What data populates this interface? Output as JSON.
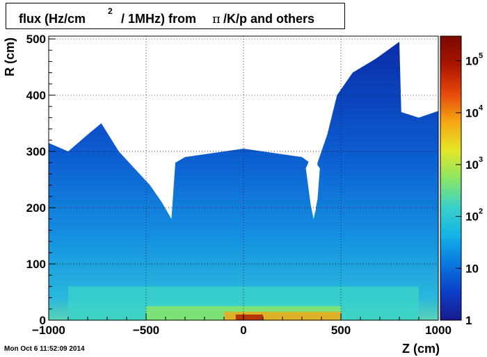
{
  "title": {
    "part1": "flux (Hz/cm",
    "sup": "2",
    "part2": " / 1MHz) from ",
    "pi": "π",
    "part3": "/K/p and others"
  },
  "timestamp": "Mon Oct  6 11:52:09 2014",
  "chart_data": {
    "type": "heatmap",
    "xlabel": "Z (cm)",
    "ylabel": "R (cm)",
    "xlim": [
      -1000,
      1000
    ],
    "ylim": [
      0,
      505
    ],
    "x_ticks": [
      "−1000",
      "−500",
      "0",
      "500",
      "1000"
    ],
    "x_tick_values": [
      -1000,
      -500,
      0,
      500,
      1000
    ],
    "y_ticks": [
      "0",
      "100",
      "200",
      "300",
      "400",
      "500"
    ],
    "y_tick_values": [
      0,
      100,
      200,
      300,
      400,
      500
    ],
    "grid": true,
    "color_scale": "log",
    "z_range": [
      1,
      300000
    ],
    "z_ticks": [
      {
        "base": "1",
        "exp": "",
        "value": 1
      },
      {
        "base": "10",
        "exp": "",
        "value": 10
      },
      {
        "base": "10",
        "exp": "2",
        "value": 100
      },
      {
        "base": "10",
        "exp": "3",
        "value": 1000
      },
      {
        "base": "10",
        "exp": "4",
        "value": 10000
      },
      {
        "base": "10",
        "exp": "5",
        "value": 100000
      }
    ],
    "colormap": [
      "#1a1a8c",
      "#0b3fc8",
      "#0a78e0",
      "#14b4e6",
      "#3ad2c8",
      "#8ce664",
      "#e6e628",
      "#f5a514",
      "#e6460a",
      "#aa1400",
      "#7a0a00"
    ],
    "boundary_top": [
      [
        -1000,
        315
      ],
      [
        -900,
        300
      ],
      [
        -800,
        330
      ],
      [
        -730,
        350
      ],
      [
        -640,
        300
      ],
      [
        -560,
        270
      ],
      [
        -480,
        240
      ],
      [
        -420,
        210
      ],
      [
        -370,
        180
      ],
      [
        -360,
        230
      ],
      [
        -350,
        280
      ],
      [
        -300,
        290
      ],
      [
        0,
        305
      ],
      [
        300,
        290
      ],
      [
        340,
        280
      ],
      [
        360,
        240
      ],
      [
        370,
        190
      ],
      [
        380,
        280
      ],
      [
        430,
        330
      ],
      [
        480,
        400
      ],
      [
        560,
        440
      ],
      [
        680,
        465
      ],
      [
        800,
        495
      ],
      [
        810,
        370
      ],
      [
        900,
        360
      ],
      [
        1000,
        372
      ]
    ],
    "hole_outline": [
      [
        320,
        270
      ],
      [
        345,
        205
      ],
      [
        360,
        180
      ],
      [
        380,
        215
      ],
      [
        392,
        270
      ],
      [
        360,
        285
      ],
      [
        335,
        282
      ]
    ],
    "bands": [
      {
        "z0": -1000,
        "z1": 1000,
        "r0": 0,
        "r1": 505,
        "flux": 20
      },
      {
        "z0": -360,
        "z1": 360,
        "r0": 0,
        "r1": 280,
        "flux": 60
      },
      {
        "z0": -900,
        "z1": 900,
        "r0": 0,
        "r1": 60,
        "flux": 150
      },
      {
        "z0": -500,
        "z1": 500,
        "r0": 0,
        "r1": 25,
        "flux": 600
      },
      {
        "z0": -100,
        "z1": 500,
        "r0": 0,
        "r1": 15,
        "flux": 10000
      },
      {
        "z0": -40,
        "z1": 100,
        "r0": 0,
        "r1": 10,
        "flux": 80000
      }
    ]
  }
}
